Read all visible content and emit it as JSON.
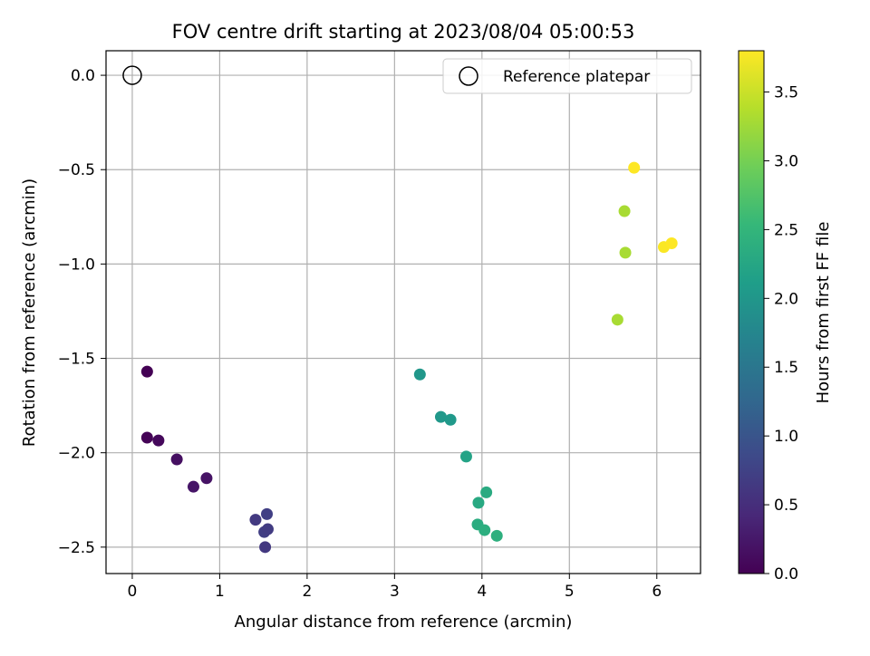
{
  "chart_data": {
    "type": "scatter",
    "title": "FOV centre drift starting at 2023/08/04 05:00:53",
    "xlabel": "Angular distance from reference (arcmin)",
    "ylabel": "Rotation from reference (arcmin)",
    "xlim": [
      -0.3,
      6.5
    ],
    "ylim": [
      -2.64,
      0.13
    ],
    "x_ticks": [
      0,
      1,
      2,
      3,
      4,
      5,
      6
    ],
    "x_tick_labels": [
      "0",
      "1",
      "2",
      "3",
      "4",
      "5",
      "6"
    ],
    "y_ticks": [
      0.0,
      -0.5,
      -1.0,
      -1.5,
      -2.0,
      -2.5
    ],
    "y_tick_labels": [
      "0.0",
      "−0.5",
      "−1.0",
      "−1.5",
      "−2.0",
      "−2.5"
    ],
    "grid": true,
    "legend": {
      "placement": "upper right",
      "entries": [
        {
          "label": "Reference platepar",
          "marker": "open-circle"
        }
      ]
    },
    "reference_point": {
      "x": 0.0,
      "y": 0.0,
      "label": "Reference platepar"
    },
    "colorbar": {
      "label": "Hours from first FF file",
      "colormap": "viridis",
      "range": [
        0.0,
        3.8
      ],
      "ticks": [
        0.0,
        0.5,
        1.0,
        1.5,
        2.0,
        2.5,
        3.0,
        3.5
      ],
      "tick_labels": [
        "0.0",
        "0.5",
        "1.0",
        "1.5",
        "2.0",
        "2.5",
        "3.0",
        "3.5"
      ]
    },
    "points": [
      {
        "x": 0.17,
        "y": -1.57,
        "hours": 0.0
      },
      {
        "x": 0.17,
        "y": -1.92,
        "hours": 0.02
      },
      {
        "x": 0.3,
        "y": -1.935,
        "hours": 0.08
      },
      {
        "x": 0.51,
        "y": -2.035,
        "hours": 0.15
      },
      {
        "x": 0.7,
        "y": -2.18,
        "hours": 0.22
      },
      {
        "x": 0.85,
        "y": -2.135,
        "hours": 0.2
      },
      {
        "x": 1.41,
        "y": -2.355,
        "hours": 0.65
      },
      {
        "x": 1.51,
        "y": -2.42,
        "hours": 0.7
      },
      {
        "x": 1.54,
        "y": -2.325,
        "hours": 0.72
      },
      {
        "x": 1.55,
        "y": -2.405,
        "hours": 0.68
      },
      {
        "x": 1.52,
        "y": -2.5,
        "hours": 0.62
      },
      {
        "x": 3.29,
        "y": -1.585,
        "hours": 2.0
      },
      {
        "x": 3.53,
        "y": -1.81,
        "hours": 2.02
      },
      {
        "x": 3.64,
        "y": -1.825,
        "hours": 2.03
      },
      {
        "x": 3.82,
        "y": -2.02,
        "hours": 2.2
      },
      {
        "x": 3.96,
        "y": -2.265,
        "hours": 2.3
      },
      {
        "x": 4.05,
        "y": -2.21,
        "hours": 2.32
      },
      {
        "x": 3.95,
        "y": -2.38,
        "hours": 2.35
      },
      {
        "x": 4.03,
        "y": -2.41,
        "hours": 2.38
      },
      {
        "x": 4.17,
        "y": -2.44,
        "hours": 2.4
      },
      {
        "x": 5.74,
        "y": -0.49,
        "hours": 3.8
      },
      {
        "x": 5.63,
        "y": -0.72,
        "hours": 3.3
      },
      {
        "x": 5.64,
        "y": -0.94,
        "hours": 3.3
      },
      {
        "x": 6.08,
        "y": -0.91,
        "hours": 3.78
      },
      {
        "x": 6.17,
        "y": -0.89,
        "hours": 3.8
      },
      {
        "x": 5.55,
        "y": -1.295,
        "hours": 3.3
      }
    ]
  }
}
